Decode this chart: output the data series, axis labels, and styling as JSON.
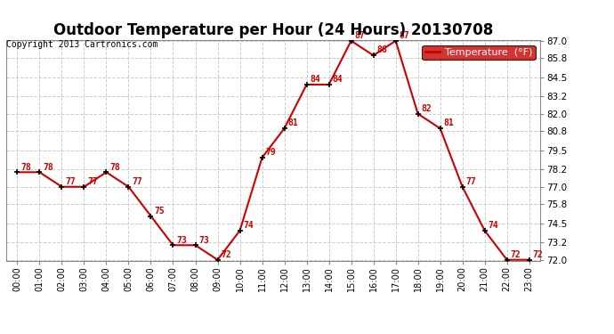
{
  "title": "Outdoor Temperature per Hour (24 Hours) 20130708",
  "copyright": "Copyright 2013 Cartronics.com",
  "legend_label": "Temperature  (°F)",
  "hours": [
    "00:00",
    "01:00",
    "02:00",
    "03:00",
    "04:00",
    "05:00",
    "06:00",
    "07:00",
    "08:00",
    "09:00",
    "10:00",
    "11:00",
    "12:00",
    "13:00",
    "14:00",
    "15:00",
    "16:00",
    "17:00",
    "18:00",
    "19:00",
    "20:00",
    "21:00",
    "22:00",
    "23:00"
  ],
  "temperatures": [
    78,
    78,
    77,
    77,
    78,
    77,
    75,
    73,
    73,
    72,
    74,
    79,
    81,
    84,
    84,
    87,
    86,
    87,
    82,
    81,
    77,
    74,
    72,
    72
  ],
  "line_color": "#cc0000",
  "marker_color": "#000000",
  "label_color": "#cc0000",
  "background_color": "#ffffff",
  "grid_color": "#cccccc",
  "legend_bg": "#cc0000",
  "legend_text_color": "#ffffff",
  "ylim_min": 72.0,
  "ylim_max": 87.0,
  "ytick_values": [
    72.0,
    73.2,
    74.5,
    75.8,
    77.0,
    78.2,
    79.5,
    80.8,
    82.0,
    83.2,
    84.5,
    85.8,
    87.0
  ],
  "title_fontsize": 12,
  "copyright_fontsize": 7,
  "label_fontsize": 7,
  "tick_fontsize": 7,
  "ytick_fontsize": 7.5
}
